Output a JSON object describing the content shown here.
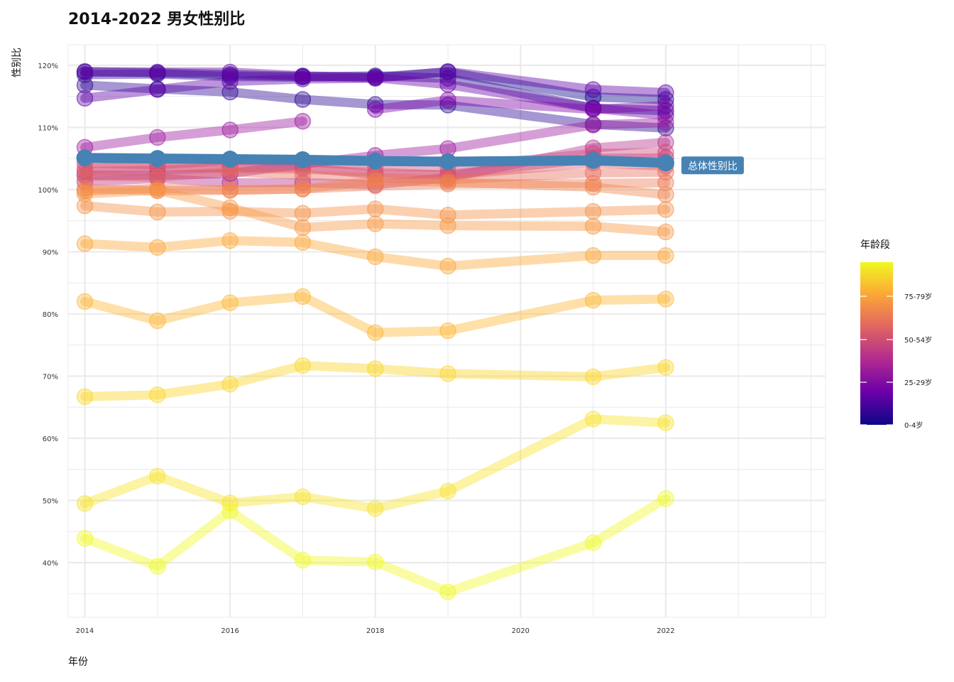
{
  "chart_data": {
    "type": "line",
    "title": "2014-2022 男女性别比",
    "xlabel": "年份",
    "ylabel": "性别比",
    "x_ticks": [
      2014,
      2016,
      2018,
      2020,
      2022
    ],
    "x_range": [
      2013.77,
      2024.2
    ],
    "y_ticks": [
      "40%",
      "50%",
      "60%",
      "70%",
      "80%",
      "90%",
      "100%",
      "110%",
      "120%"
    ],
    "y_tick_values": [
      40,
      50,
      60,
      70,
      80,
      90,
      100,
      110,
      120
    ],
    "y_range": [
      31.2,
      123.3
    ],
    "grid": true,
    "x": [
      2014,
      2015,
      2016,
      2017,
      2018,
      2019,
      2021,
      2022
    ],
    "series": [
      {
        "values": [
          119.0,
          118.8,
          118.5,
          118.2,
          118.1,
          118.9,
          114.9,
          114.5
        ],
        "color": "#0d0887"
      },
      {
        "values": [
          118.5,
          118.6,
          118.2,
          118.1,
          118.3,
          117.9,
          113.1,
          112.7
        ],
        "color": "#2c0594"
      },
      {
        "values": [
          116.8,
          116.2,
          115.7,
          114.5,
          113.7,
          113.6,
          110.5,
          109.9
        ],
        "color": "#2c0594"
      },
      {
        "values": [
          114.7,
          116.1,
          117.4,
          117.8,
          117.9,
          119.0,
          116.1,
          115.6
        ],
        "color": "#5c01a6"
      },
      {
        "values": [
          118.9,
          118.9,
          118.9,
          118.3,
          118.0,
          116.9,
          113.1,
          111.9
        ],
        "color": "#6a00a8"
      },
      {
        "values": [
          null,
          null,
          null,
          null,
          112.9,
          114.4,
          112.9,
          113.5
        ],
        "color": "#7e03a8"
      },
      {
        "values": [
          106.8,
          108.4,
          109.6,
          111.0,
          null,
          null,
          null,
          null
        ],
        "color": "#9c179e"
      },
      {
        "values": [
          102.3,
          102.3,
          102.6,
          104.1,
          105.5,
          106.6,
          110.4,
          110.8
        ],
        "color": "#9c179e"
      },
      {
        "values": [
          101.3,
          101.8,
          101.1,
          101.1,
          100.8,
          101.9,
          106.7,
          107.6
        ],
        "color": "#b52f8c"
      },
      {
        "values": [
          102.9,
          103.1,
          103.6,
          103.6,
          102.4,
          102.4,
          105.0,
          105.1
        ],
        "color": "#c03a83"
      },
      {
        "values": [
          104.3,
          104.0,
          104.7,
          104.5,
          103.8,
          103.6,
          105.8,
          106.0
        ],
        "color": "#cc4778"
      },
      {
        "values": [
          103.4,
          103.8,
          103.4,
          103.3,
          102.8,
          102.3,
          104.3,
          103.8
        ],
        "color": "#d8576b"
      },
      {
        "values": [
          102.2,
          102.0,
          102.9,
          102.3,
          101.9,
          101.6,
          102.7,
          102.8
        ],
        "color": "#e66c5c"
      },
      {
        "values": [
          99.8,
          100.2,
          99.9,
          100.1,
          100.6,
          100.9,
          101.0,
          101.1
        ],
        "color": "#ed7953"
      },
      {
        "values": [
          100.2,
          99.8,
          99.9,
          100.1,
          101.4,
          101.2,
          100.4,
          99.2
        ],
        "color": "#f1834b"
      },
      {
        "values": [
          97.4,
          96.4,
          96.5,
          96.2,
          96.9,
          95.9,
          96.5,
          96.8
        ],
        "color": "#f48f44"
      },
      {
        "values": [
          99.3,
          99.9,
          97.1,
          93.9,
          94.5,
          94.2,
          94.1,
          93.2
        ],
        "color": "#f89540"
      },
      {
        "values": [
          91.3,
          90.7,
          91.8,
          91.5,
          89.2,
          87.7,
          89.4,
          89.4
        ],
        "color": "#fca636"
      },
      {
        "values": [
          82.0,
          78.9,
          81.8,
          82.8,
          77.0,
          77.3,
          82.2,
          82.4
        ],
        "color": "#fdb42f"
      },
      {
        "values": [
          66.7,
          67.0,
          68.7,
          71.7,
          71.2,
          70.4,
          69.9,
          71.4
        ],
        "color": "#fbd524"
      },
      {
        "values": [
          49.5,
          53.9,
          49.6,
          50.6,
          48.7,
          51.5,
          63.1,
          62.5
        ],
        "color": "#f7e225"
      },
      {
        "values": [
          43.9,
          39.4,
          48.3,
          40.4,
          40.1,
          35.3,
          43.2,
          50.3
        ],
        "color": "#f0f921"
      }
    ],
    "overall": {
      "label": "总体性别比",
      "color": "#4682b4",
      "values": [
        105.1,
        105.0,
        104.9,
        104.8,
        104.6,
        104.5,
        104.7,
        104.3
      ]
    },
    "legend": {
      "title": "年龄段",
      "position": "right",
      "labels": [
        "75-79岁",
        "50-54岁",
        "25-29岁",
        "0-4岁"
      ],
      "stops": [
        "#0d0887",
        "#6a00a8",
        "#b12a90",
        "#e16462",
        "#fca636",
        "#f0f921"
      ]
    }
  }
}
